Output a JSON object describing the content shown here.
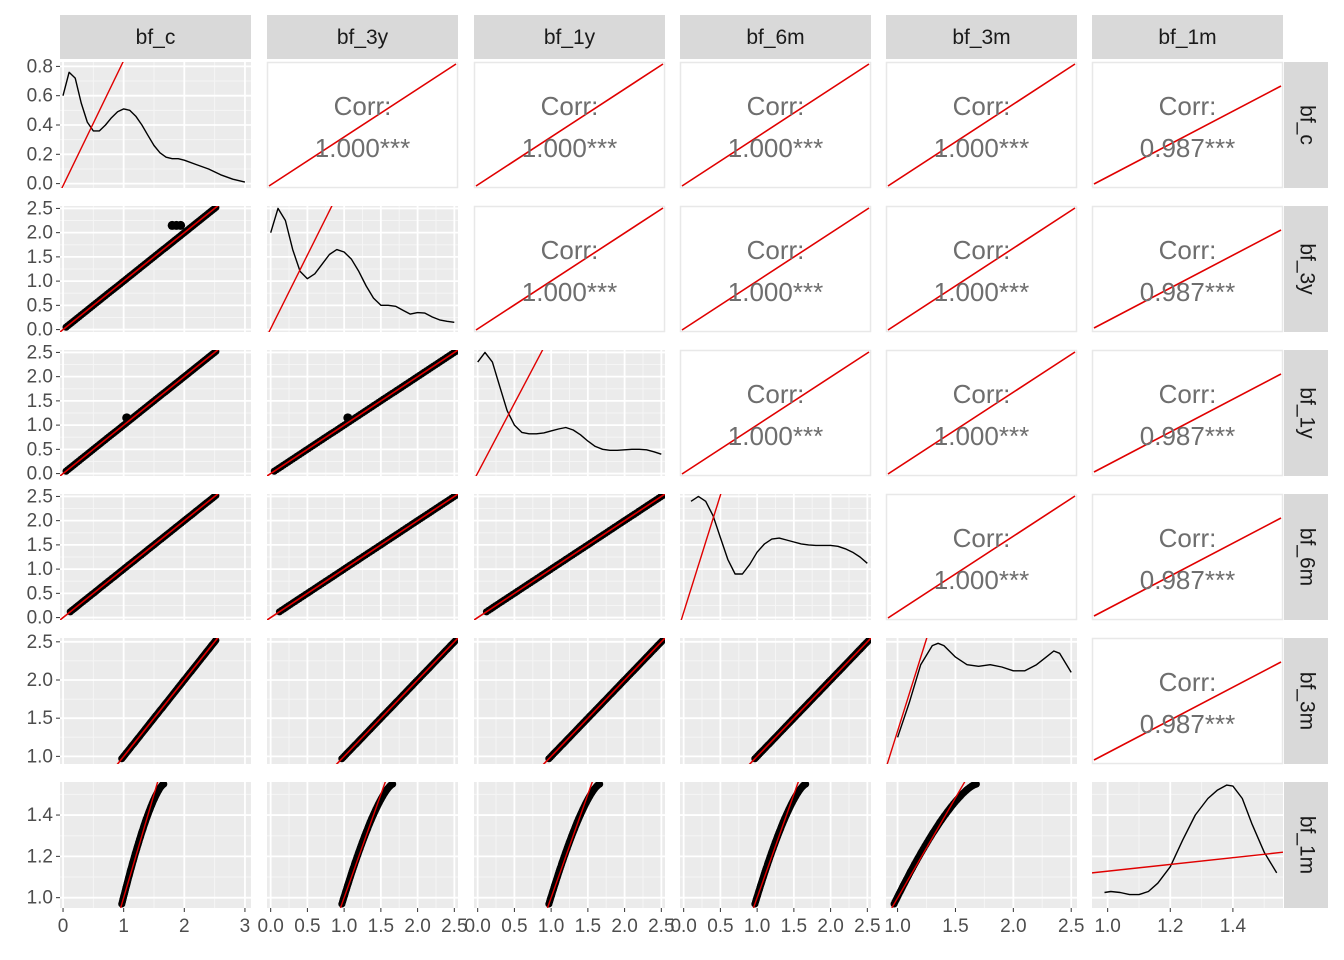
{
  "chart_data": {
    "type": "scatter",
    "title": "",
    "variables": [
      "bf_c",
      "bf_3y",
      "bf_1y",
      "bf_6m",
      "bf_3m",
      "bf_1m"
    ],
    "corr_label": "Corr:",
    "correlations": [
      [
        "",
        "1.000***",
        "1.000***",
        "1.000***",
        "1.000***",
        "0.987***"
      ],
      [
        "",
        "",
        "1.000***",
        "1.000***",
        "1.000***",
        "0.987***"
      ],
      [
        "",
        "",
        "",
        "1.000***",
        "1.000***",
        "0.987***"
      ],
      [
        "",
        "",
        "",
        "",
        "1.000***",
        "0.987***"
      ],
      [
        "",
        "",
        "",
        "",
        "",
        "0.987***"
      ]
    ],
    "ranges": {
      "bf_c": [
        -0.05,
        3.1
      ],
      "bf_3y": [
        -0.05,
        2.55
      ],
      "bf_1y": [
        -0.05,
        2.55
      ],
      "bf_6m": [
        -0.05,
        2.55
      ],
      "bf_3m": [
        0.9,
        2.55
      ],
      "bf_1m": [
        0.95,
        1.56
      ]
    },
    "row_ticks": [
      {
        "labels": [
          "0.0",
          "0.2",
          "0.4",
          "0.6",
          "0.8"
        ],
        "values": [
          0.0,
          0.2,
          0.4,
          0.6,
          0.8
        ],
        "range": [
          -0.03,
          0.83
        ]
      },
      {
        "labels": [
          "0.0",
          "0.5",
          "1.0",
          "1.5",
          "2.0",
          "2.5"
        ],
        "values": [
          0.0,
          0.5,
          1.0,
          1.5,
          2.0,
          2.5
        ],
        "range": [
          -0.05,
          2.55
        ]
      },
      {
        "labels": [
          "0.0",
          "0.5",
          "1.0",
          "1.5",
          "2.0",
          "2.5"
        ],
        "values": [
          0.0,
          0.5,
          1.0,
          1.5,
          2.0,
          2.5
        ],
        "range": [
          -0.05,
          2.55
        ]
      },
      {
        "labels": [
          "0.0",
          "0.5",
          "1.0",
          "1.5",
          "2.0",
          "2.5"
        ],
        "values": [
          0.0,
          0.5,
          1.0,
          1.5,
          2.0,
          2.5
        ],
        "range": [
          -0.05,
          2.55
        ]
      },
      {
        "labels": [
          "1.0",
          "1.5",
          "2.0",
          "2.5"
        ],
        "values": [
          1.0,
          1.5,
          2.0,
          2.5
        ],
        "range": [
          0.9,
          2.55
        ]
      },
      {
        "labels": [
          "1.0",
          "1.2",
          "1.4"
        ],
        "values": [
          1.0,
          1.2,
          1.4
        ],
        "range": [
          0.95,
          1.56
        ]
      }
    ],
    "col_ticks": [
      {
        "labels": [
          "0",
          "1",
          "2",
          "3"
        ],
        "values": [
          0,
          1,
          2,
          3
        ]
      },
      {
        "labels": [
          "0.0",
          "0.5",
          "1.0",
          "1.5",
          "2.0",
          "2.5"
        ],
        "values": [
          0.0,
          0.5,
          1.0,
          1.5,
          2.0,
          2.5
        ]
      },
      {
        "labels": [
          "0.0",
          "0.5",
          "1.0",
          "1.5",
          "2.0",
          "2.5"
        ],
        "values": [
          0.0,
          0.5,
          1.0,
          1.5,
          2.0,
          2.5
        ]
      },
      {
        "labels": [
          "0.0",
          "0.5",
          "1.0",
          "1.5",
          "2.0",
          "2.5"
        ],
        "values": [
          0.0,
          0.5,
          1.0,
          1.5,
          2.0,
          2.5
        ]
      },
      {
        "labels": [
          "1.0",
          "1.5",
          "2.0",
          "2.5"
        ],
        "values": [
          1.0,
          1.5,
          2.0,
          2.5
        ]
      },
      {
        "labels": [
          "1.0",
          "1.2",
          "1.4"
        ],
        "values": [
          1.0,
          1.2,
          1.4
        ]
      }
    ],
    "densities": [
      {
        "x": [
          0.0,
          0.1,
          0.2,
          0.3,
          0.4,
          0.5,
          0.6,
          0.7,
          0.8,
          0.9,
          1.0,
          1.1,
          1.2,
          1.3,
          1.4,
          1.5,
          1.6,
          1.7,
          1.8,
          1.9,
          2.0,
          2.2,
          2.4,
          2.6,
          2.8,
          3.0
        ],
        "y": [
          0.6,
          0.76,
          0.72,
          0.55,
          0.42,
          0.36,
          0.36,
          0.4,
          0.45,
          0.49,
          0.51,
          0.5,
          0.46,
          0.4,
          0.33,
          0.26,
          0.21,
          0.18,
          0.17,
          0.17,
          0.16,
          0.13,
          0.1,
          0.06,
          0.03,
          0.01
        ]
      },
      {
        "x": [
          0.0,
          0.1,
          0.2,
          0.3,
          0.4,
          0.5,
          0.6,
          0.7,
          0.8,
          0.9,
          1.0,
          1.1,
          1.2,
          1.3,
          1.4,
          1.5,
          1.6,
          1.7,
          1.8,
          1.9,
          2.0,
          2.1,
          2.2,
          2.3,
          2.4,
          2.5
        ],
        "y": [
          2.0,
          2.5,
          2.25,
          1.65,
          1.2,
          1.05,
          1.15,
          1.35,
          1.55,
          1.65,
          1.6,
          1.45,
          1.2,
          0.9,
          0.65,
          0.5,
          0.5,
          0.48,
          0.4,
          0.32,
          0.35,
          0.34,
          0.26,
          0.2,
          0.17,
          0.15
        ]
      },
      {
        "x": [
          0.0,
          0.1,
          0.2,
          0.3,
          0.4,
          0.5,
          0.6,
          0.7,
          0.8,
          0.9,
          1.0,
          1.1,
          1.2,
          1.3,
          1.4,
          1.5,
          1.6,
          1.7,
          1.8,
          1.9,
          2.0,
          2.1,
          2.2,
          2.3,
          2.4,
          2.5
        ],
        "y": [
          2.3,
          2.5,
          2.3,
          1.8,
          1.3,
          1.0,
          0.85,
          0.82,
          0.82,
          0.84,
          0.88,
          0.92,
          0.95,
          0.9,
          0.8,
          0.67,
          0.56,
          0.5,
          0.48,
          0.48,
          0.49,
          0.5,
          0.5,
          0.49,
          0.45,
          0.4
        ]
      },
      {
        "x": [
          0.1,
          0.2,
          0.3,
          0.4,
          0.5,
          0.6,
          0.7,
          0.8,
          0.9,
          1.0,
          1.1,
          1.2,
          1.3,
          1.4,
          1.5,
          1.6,
          1.7,
          1.8,
          1.9,
          2.0,
          2.1,
          2.2,
          2.3,
          2.4,
          2.5
        ],
        "y": [
          2.4,
          2.5,
          2.4,
          2.1,
          1.65,
          1.2,
          0.9,
          0.9,
          1.1,
          1.35,
          1.52,
          1.62,
          1.64,
          1.6,
          1.56,
          1.52,
          1.5,
          1.49,
          1.49,
          1.49,
          1.47,
          1.42,
          1.35,
          1.25,
          1.12
        ]
      },
      {
        "x": [
          1.0,
          1.1,
          1.2,
          1.3,
          1.35,
          1.4,
          1.5,
          1.6,
          1.7,
          1.8,
          1.9,
          2.0,
          2.1,
          2.2,
          2.3,
          2.35,
          2.4,
          2.5
        ],
        "y": [
          1.25,
          1.7,
          2.2,
          2.45,
          2.48,
          2.45,
          2.3,
          2.2,
          2.18,
          2.2,
          2.17,
          2.12,
          2.12,
          2.2,
          2.32,
          2.38,
          2.35,
          2.1
        ]
      },
      {
        "x": [
          0.99,
          1.01,
          1.04,
          1.07,
          1.1,
          1.13,
          1.16,
          1.2,
          1.24,
          1.28,
          1.32,
          1.35,
          1.38,
          1.4,
          1.43,
          1.46,
          1.5,
          1.54
        ],
        "y": [
          1.025,
          1.03,
          1.025,
          1.015,
          1.015,
          1.03,
          1.07,
          1.15,
          1.28,
          1.4,
          1.48,
          1.52,
          1.545,
          1.54,
          1.48,
          1.36,
          1.22,
          1.12
        ]
      }
    ],
    "scatter_offsets": {
      "bf_1m": [
        1.0,
        1.02,
        1.04,
        1.08,
        1.13,
        1.18,
        1.24,
        1.3,
        1.35,
        1.4,
        1.45,
        1.5,
        1.53,
        1.55
      ],
      "bf_3m": [
        1.0,
        1.05,
        1.1,
        1.2,
        1.3,
        1.45,
        1.6,
        1.8,
        2.0,
        2.2,
        2.4,
        2.5
      ]
    },
    "overlay_note": ""
  },
  "colors": {
    "strip_bg": "#d9d9d9",
    "panel_bg": "#ebebeb",
    "grid_major": "#ffffff",
    "grid_minor": "#f5f5f5",
    "point": "#000000",
    "line": "#e00000",
    "density": "#000000",
    "corr_text": "#6e6e6e",
    "tick_text": "#4d4d4d",
    "border": "#e8e8e8"
  }
}
